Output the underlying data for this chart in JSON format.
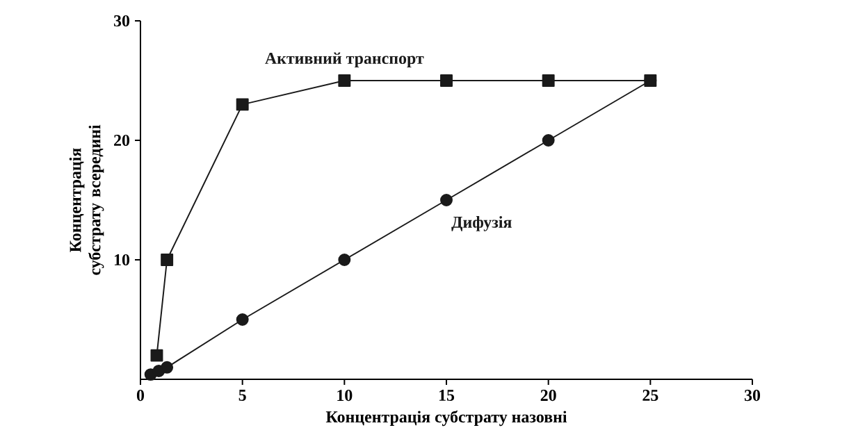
{
  "chart_data": {
    "type": "line",
    "xlabel": "Концентрація субстрату назовні",
    "ylabel": "Концентрація субстрату всередині",
    "xlim": [
      0,
      30
    ],
    "ylim": [
      0,
      30
    ],
    "xticks": [
      0,
      5,
      10,
      15,
      20,
      25,
      30
    ],
    "yticks": [
      10,
      20,
      30
    ],
    "grid": false,
    "legend": false,
    "line_style": "solid",
    "series": [
      {
        "name": "Активний транспорт",
        "color": "#1a1a1a",
        "marker": "square",
        "x": [
          0.8,
          1.3,
          5,
          10,
          15,
          20,
          25
        ],
        "values": [
          2,
          10,
          23,
          25,
          25,
          25,
          25
        ]
      },
      {
        "name": "Дифузія",
        "color": "#1a1a1a",
        "marker": "circle",
        "x": [
          0.5,
          0.9,
          1.3,
          5,
          10,
          15,
          20,
          25
        ],
        "values": [
          0.4,
          0.7,
          1,
          5,
          10,
          15,
          20,
          25
        ]
      }
    ]
  }
}
